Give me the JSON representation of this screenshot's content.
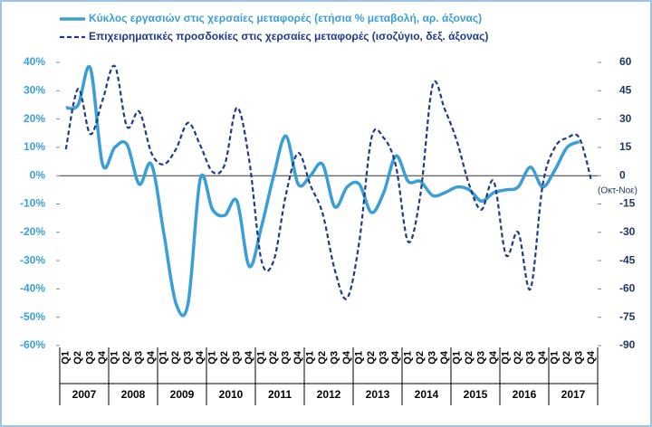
{
  "chart_data": {
    "type": "line",
    "categories": [
      "Q1",
      "Q2",
      "Q3",
      "Q4",
      "Q1",
      "Q2",
      "Q3",
      "Q4",
      "Q1",
      "Q2",
      "Q3",
      "Q4",
      "Q1",
      "Q2",
      "Q3",
      "Q4",
      "Q1",
      "Q2",
      "Q3",
      "Q4",
      "Q1",
      "Q2",
      "Q3",
      "Q4",
      "Q1",
      "Q2",
      "Q3",
      "Q4",
      "Q1",
      "Q2",
      "Q3",
      "Q4",
      "Q1",
      "Q2",
      "Q3",
      "Q4",
      "Q1",
      "Q2",
      "Q3",
      "Q4",
      "Q1",
      "Q2",
      "Q3",
      "Q4"
    ],
    "years": [
      "2007",
      "2008",
      "2009",
      "2010",
      "2011",
      "2012",
      "2013",
      "2014",
      "2015",
      "2016",
      "2017"
    ],
    "series": [
      {
        "name": "Κύκλος εργασιών στις χερσαίες μεταφορές (ετήσια % μεταβολή, αρ. άξονας)",
        "color": "#3a9ed8",
        "dash": false,
        "values": [
          24,
          25,
          38,
          4,
          10,
          11,
          -3,
          4,
          -20,
          -45,
          -45,
          -1,
          -12,
          -14,
          -9,
          -32,
          -18,
          0,
          14,
          -3,
          0,
          4,
          -11,
          -4,
          -3,
          -13,
          -6,
          7,
          -2,
          -2,
          -7,
          -6,
          -4,
          -5,
          -9,
          -6,
          -5,
          -4,
          3,
          -4,
          2,
          10,
          12,
          null
        ]
      },
      {
        "name": "Επιχειρηματικές προσδοκίες στις χερσαίες μεταφορές (ισοζύγιο, δεξ. άξονας)",
        "color": "#1f3a8a",
        "dash": true,
        "axis": "y2",
        "values": [
          14,
          46,
          22,
          40,
          58,
          26,
          34,
          12,
          6,
          14,
          28,
          16,
          2,
          6,
          36,
          8,
          -45,
          -45,
          -10,
          12,
          -5,
          -20,
          -50,
          -65,
          -35,
          20,
          20,
          5,
          -35,
          -10,
          48,
          35,
          18,
          -5,
          -18,
          -3,
          -42,
          -30,
          -60,
          -5,
          15,
          20,
          20,
          -3
        ]
      }
    ],
    "annotation": "(Οκτ-Νοε)",
    "ylim": [
      -60,
      40
    ],
    "yticks": [
      {
        "value": 40,
        "label": "40%"
      },
      {
        "value": 30,
        "label": "30%"
      },
      {
        "value": 20,
        "label": "20%"
      },
      {
        "value": 10,
        "label": "10%"
      },
      {
        "value": 0,
        "label": "0%"
      },
      {
        "value": -10,
        "label": "-10%"
      },
      {
        "value": -20,
        "label": "-20%"
      },
      {
        "value": -30,
        "label": "-30%"
      },
      {
        "value": -40,
        "label": "-40%"
      },
      {
        "value": -50,
        "label": "-50%"
      },
      {
        "value": -60,
        "label": "-60%"
      }
    ],
    "y2lim": [
      -90,
      60
    ],
    "y2ticks": [
      60,
      45,
      30,
      15,
      0,
      -15,
      -30,
      -45,
      -60,
      -75,
      -90
    ]
  }
}
